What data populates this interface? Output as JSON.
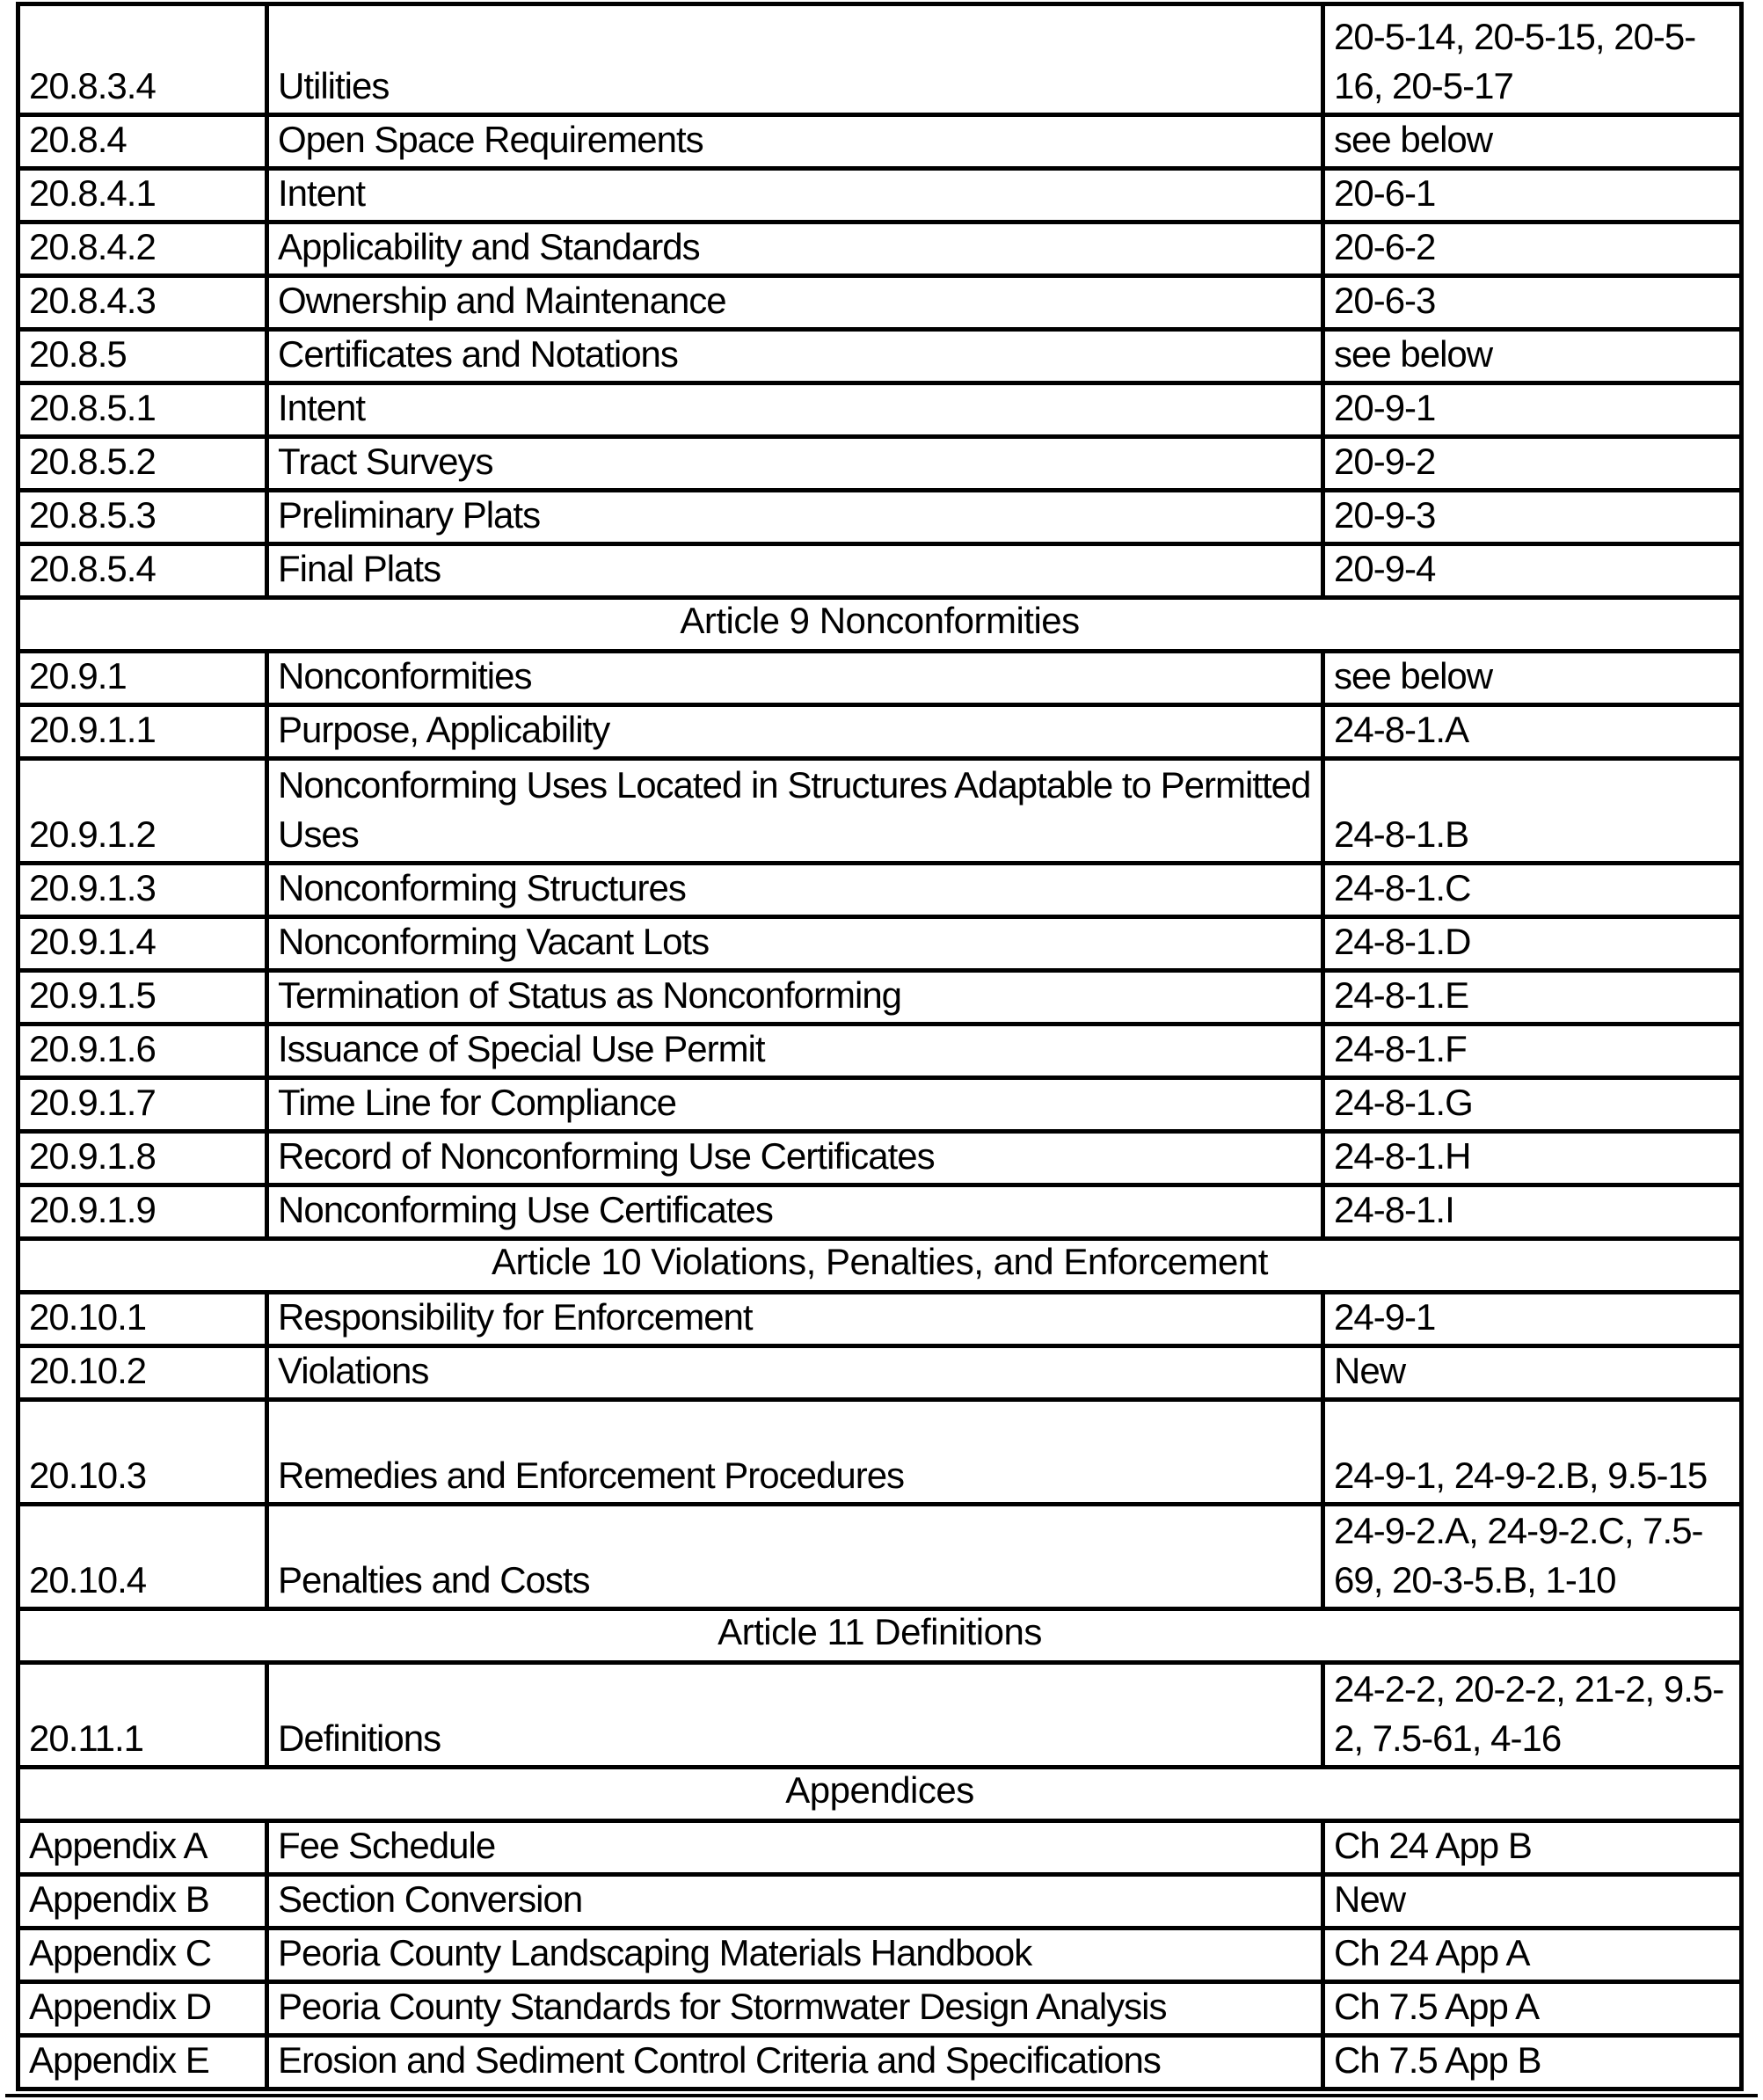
{
  "document": {
    "kind": "section-conversion-table",
    "columns": [
      "section_number",
      "title",
      "legacy_reference"
    ]
  },
  "colors": {
    "border": "#000000",
    "background": "#ffffff",
    "text": "#000000"
  },
  "table": {
    "rows": [
      {
        "type": "data",
        "first": true,
        "section": "20.8.3.4",
        "title": "Utilities",
        "ref": "20-5-14, 20-5-15, 20-5-16, 20-5-17"
      },
      {
        "type": "data",
        "section": "20.8.4",
        "title": "Open Space Requirements",
        "ref": "see below"
      },
      {
        "type": "data",
        "section": "20.8.4.1",
        "title": "Intent",
        "ref": "20-6-1"
      },
      {
        "type": "data",
        "section": "20.8.4.2",
        "title": "Applicability and Standards",
        "ref": "20-6-2"
      },
      {
        "type": "data",
        "section": "20.8.4.3",
        "title": "Ownership and Maintenance",
        "ref": "20-6-3"
      },
      {
        "type": "data",
        "section": "20.8.5",
        "title": "Certificates and Notations",
        "ref": "see below"
      },
      {
        "type": "data",
        "section": "20.8.5.1",
        "title": "Intent",
        "ref": "20-9-1"
      },
      {
        "type": "data",
        "section": "20.8.5.2",
        "title": "Tract Surveys",
        "ref": "20-9-2"
      },
      {
        "type": "data",
        "section": "20.8.5.3",
        "title": "Preliminary Plats",
        "ref": "20-9-3"
      },
      {
        "type": "data",
        "section": "20.8.5.4",
        "title": "Final Plats",
        "ref": "20-9-4"
      },
      {
        "type": "section",
        "label": "Article 9 Nonconformities"
      },
      {
        "type": "data",
        "section": "20.9.1",
        "title": "Nonconformities",
        "ref": "see below"
      },
      {
        "type": "data",
        "section": "20.9.1.1",
        "title": "Purpose, Applicability",
        "ref": "24-8-1.A"
      },
      {
        "type": "data",
        "tall": true,
        "section": "20.9.1.2",
        "title": "Nonconforming Uses Located in Structures Adaptable to Permitted Uses",
        "ref": "24-8-1.B"
      },
      {
        "type": "data",
        "section": "20.9.1.3",
        "title": "Nonconforming Structures",
        "ref": "24-8-1.C"
      },
      {
        "type": "data",
        "section": "20.9.1.4",
        "title": "Nonconforming Vacant Lots",
        "ref": "24-8-1.D"
      },
      {
        "type": "data",
        "section": "20.9.1.5",
        "title": "Termination of Status as Nonconforming",
        "ref": "24-8-1.E"
      },
      {
        "type": "data",
        "section": "20.9.1.6",
        "title": "Issuance of Special Use Permit",
        "ref": "24-8-1.F"
      },
      {
        "type": "data",
        "section": "20.9.1.7",
        "title": "Time Line for Compliance",
        "ref": "24-8-1.G"
      },
      {
        "type": "data",
        "section": "20.9.1.8",
        "title": "Record of Nonconforming Use Certificates",
        "ref": "24-8-1.H"
      },
      {
        "type": "data",
        "section": "20.9.1.9",
        "title": "Nonconforming Use Certificates",
        "ref": "24-8-1.I"
      },
      {
        "type": "section",
        "label": "Article 10 Violations, Penalties, and Enforcement"
      },
      {
        "type": "data",
        "section": "20.10.1",
        "title": "Responsibility for Enforcement",
        "ref": "24-9-1"
      },
      {
        "type": "data",
        "section": "20.10.2",
        "title": "Violations",
        "ref": "New"
      },
      {
        "type": "data",
        "tall": true,
        "section": "20.10.3",
        "title": "Remedies and Enforcement Procedures",
        "ref": "24-9-1, 24-9-2.B, 9.5-15"
      },
      {
        "type": "data",
        "tall": true,
        "section": "20.10.4",
        "title": "Penalties and Costs",
        "ref": "24-9-2.A, 24-9-2.C, 7.5-69, 20-3-5.B, 1-10"
      },
      {
        "type": "section",
        "label": "Article 11 Definitions"
      },
      {
        "type": "data",
        "tall": true,
        "section": "20.11.1",
        "title": "Definitions",
        "ref": "24-2-2, 20-2-2, 21-2, 9.5-2, 7.5-61, 4-16"
      },
      {
        "type": "section",
        "label": "Appendices"
      },
      {
        "type": "data",
        "section": "Appendix A",
        "title": "Fee Schedule",
        "ref": "Ch 24 App B"
      },
      {
        "type": "data",
        "section": "Appendix B",
        "title": "Section Conversion",
        "ref": "New"
      },
      {
        "type": "data",
        "section": "Appendix C",
        "title": "Peoria County Landscaping Materials Handbook",
        "ref": "Ch 24 App A"
      },
      {
        "type": "data",
        "section": "Appendix D",
        "title": "Peoria County Standards for Stormwater Design Analysis",
        "ref": "Ch 7.5 App A"
      },
      {
        "type": "data",
        "section": "Appendix E",
        "title": "Erosion and Sediment Control Criteria and Specifications",
        "ref": "Ch 7.5 App B"
      }
    ]
  }
}
